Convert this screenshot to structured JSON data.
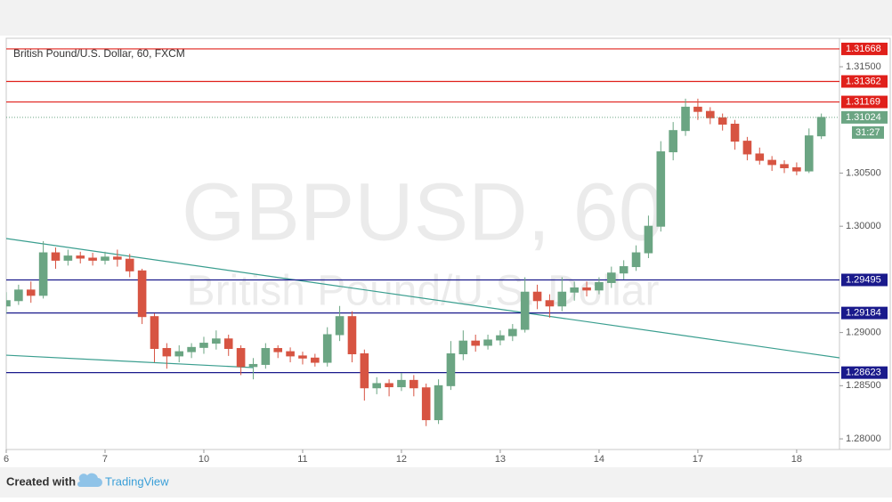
{
  "chart_data": {
    "type": "candlestick",
    "title": "British Pound/U.S. Dollar, 60, FXCM",
    "watermark": "GBPUSD, 60",
    "watermark_sub": "British Pound/U.S. Dollar",
    "footer_text": "Created with",
    "brand": "TradingView",
    "up_color": "#6ba583",
    "down_color": "#d75442",
    "xlim": [
      0,
      202.4
    ],
    "ylim": [
      1.279,
      1.31768
    ],
    "xticks": [
      {
        "value": 0,
        "label": "6"
      },
      {
        "value": 24,
        "label": "7"
      },
      {
        "value": 48,
        "label": "10"
      },
      {
        "value": 72,
        "label": "11"
      },
      {
        "value": 96,
        "label": "12"
      },
      {
        "value": 120,
        "label": "13"
      },
      {
        "value": 144,
        "label": "14"
      },
      {
        "value": 168,
        "label": "17"
      },
      {
        "value": 192,
        "label": "18"
      }
    ],
    "yticks": [
      {
        "value": 1.315,
        "label": "1.31500"
      },
      {
        "value": 1.305,
        "label": "1.30500"
      },
      {
        "value": 1.3,
        "label": "1.30000"
      },
      {
        "value": 1.29,
        "label": "1.29000"
      },
      {
        "value": 1.285,
        "label": "1.28500"
      },
      {
        "value": 1.28,
        "label": "1.28000"
      }
    ],
    "resistance": {
      "color": "#e0201b",
      "values": [
        1.31668,
        1.31362,
        1.31169
      ]
    },
    "support": {
      "color": "#1a1a8c",
      "values": [
        1.29495,
        1.29184,
        1.28623
      ]
    },
    "last_price": {
      "value": 1.31024,
      "color": "#6ba583",
      "countdown": "31:27"
    },
    "trendlines": [
      {
        "color": "#3a9e8f",
        "x": [
          0,
          202.4
        ],
        "y": [
          1.29884,
          1.28762
        ]
      },
      {
        "color": "#3a9e8f",
        "x": [
          0,
          60
        ],
        "y": [
          1.28787,
          1.2867
        ]
      }
    ],
    "x": [
      0,
      3,
      6,
      9,
      12,
      15,
      18,
      21,
      24,
      27,
      30,
      33,
      36,
      39,
      42,
      45,
      48,
      51,
      54,
      57,
      60,
      63,
      66,
      69,
      72,
      75,
      78,
      81,
      84,
      87,
      90,
      93,
      96,
      99,
      102,
      105,
      108,
      111,
      114,
      117,
      120,
      123,
      126,
      129,
      132,
      135,
      138,
      141,
      144,
      147,
      150,
      153,
      156,
      159,
      162,
      165,
      168,
      171,
      174,
      177,
      180,
      183,
      186,
      189,
      192,
      195,
      198
    ],
    "open": [
      1.2925,
      1.293,
      1.294,
      1.2935,
      1.2975,
      1.2968,
      1.2972,
      1.297,
      1.2968,
      1.2971,
      1.2969,
      1.2958,
      1.2915,
      1.2885,
      1.2878,
      1.2882,
      1.2886,
      1.289,
      1.2894,
      1.2885,
      1.2868,
      1.287,
      1.2885,
      1.2882,
      1.2878,
      1.2876,
      1.2872,
      1.2898,
      1.2915,
      1.288,
      1.2848,
      1.2852,
      1.2849,
      1.2855,
      1.2848,
      1.2818,
      1.285,
      1.288,
      1.2892,
      1.2888,
      1.2893,
      1.2897,
      1.2903,
      1.2938,
      1.293,
      1.2925,
      1.2938,
      1.2942,
      1.294,
      1.2947,
      1.2956,
      1.2962,
      1.2975,
      1.3,
      1.307,
      1.309,
      1.3112,
      1.3108,
      1.3102,
      1.3096,
      1.308,
      1.3068,
      1.3062,
      1.3058,
      1.3055,
      1.3052,
      1.3085
    ],
    "high": [
      1.2938,
      1.2945,
      1.2948,
      1.2986,
      1.298,
      1.2978,
      1.2976,
      1.2975,
      1.2976,
      1.2978,
      1.2974,
      1.296,
      1.2918,
      1.289,
      1.2888,
      1.289,
      1.2896,
      1.2902,
      1.2898,
      1.2888,
      1.2876,
      1.289,
      1.2888,
      1.2886,
      1.2882,
      1.288,
      1.2905,
      1.2925,
      1.292,
      1.2884,
      1.2858,
      1.2856,
      1.2862,
      1.286,
      1.2852,
      1.2856,
      1.2892,
      1.2902,
      1.2898,
      1.2898,
      1.2902,
      1.2908,
      1.2952,
      1.2945,
      1.2936,
      1.2952,
      1.2948,
      1.2948,
      1.2952,
      1.2962,
      1.2968,
      1.2982,
      1.301,
      1.308,
      1.3098,
      1.312,
      1.312,
      1.3112,
      1.3106,
      1.31,
      1.3084,
      1.3074,
      1.3066,
      1.3062,
      1.306,
      1.3092,
      1.3106
    ],
    "low": [
      1.2918,
      1.2926,
      1.2928,
      1.2932,
      1.296,
      1.2963,
      1.2965,
      1.2963,
      1.2964,
      1.2962,
      1.2952,
      1.2908,
      1.2872,
      1.2866,
      1.2872,
      1.2876,
      1.288,
      1.2884,
      1.2878,
      1.286,
      1.2856,
      1.2866,
      1.2876,
      1.2872,
      1.287,
      1.2868,
      1.2868,
      1.2892,
      1.2872,
      1.2836,
      1.2842,
      1.284,
      1.2845,
      1.284,
      1.2812,
      1.2814,
      1.2846,
      1.2874,
      1.2882,
      1.2884,
      1.2888,
      1.2892,
      1.29,
      1.2922,
      1.2914,
      1.292,
      1.293,
      1.2934,
      1.2936,
      1.2942,
      1.295,
      1.2958,
      1.297,
      1.2995,
      1.3062,
      1.3085,
      1.31,
      1.3096,
      1.309,
      1.3072,
      1.3062,
      1.3058,
      1.3052,
      1.305,
      1.3048,
      1.305,
      1.3082
    ],
    "close": [
      1.293,
      1.294,
      1.2935,
      1.2975,
      1.2968,
      1.2972,
      1.297,
      1.2968,
      1.2971,
      1.2969,
      1.2958,
      1.2915,
      1.2885,
      1.2878,
      1.2882,
      1.2886,
      1.289,
      1.2894,
      1.2885,
      1.2868,
      1.287,
      1.2885,
      1.2882,
      1.2878,
      1.2876,
      1.2872,
      1.2898,
      1.2915,
      1.288,
      1.2848,
      1.2852,
      1.2849,
      1.2855,
      1.2848,
      1.2818,
      1.285,
      1.288,
      1.2892,
      1.2888,
      1.2893,
      1.2897,
      1.2903,
      1.2938,
      1.293,
      1.2925,
      1.2938,
      1.2942,
      1.294,
      1.2947,
      1.2956,
      1.2962,
      1.2975,
      1.3,
      1.307,
      1.309,
      1.3112,
      1.3108,
      1.3102,
      1.3096,
      1.308,
      1.3068,
      1.3062,
      1.3058,
      1.3055,
      1.3052,
      1.3085,
      1.31024
    ]
  }
}
